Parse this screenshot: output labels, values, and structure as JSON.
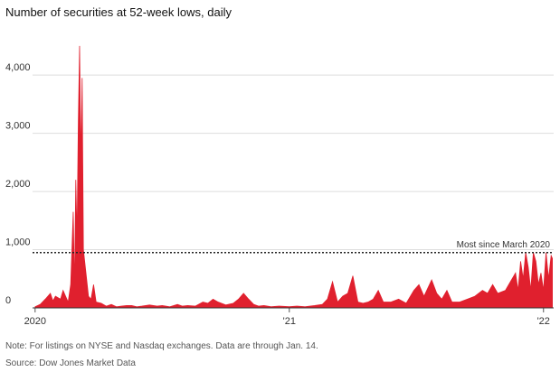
{
  "chart_data": {
    "type": "area",
    "title": "Number of securities at 52-week lows, daily",
    "note": "Note: For listings on NYSE and Nasdaq exchanges. Data are through Jan. 14.",
    "source": "Source: Dow Jones Market Data",
    "color": "#e0202e",
    "x": [
      2020.0,
      2020.02,
      2020.04,
      2020.06,
      2020.07,
      2020.08,
      2020.1,
      2020.11,
      2020.12,
      2020.13,
      2020.14,
      2020.15,
      2020.155,
      2020.16,
      2020.165,
      2020.17,
      2020.175,
      2020.18,
      2020.185,
      2020.19,
      2020.2,
      2020.21,
      2020.22,
      2020.23,
      2020.24,
      2020.26,
      2020.28,
      2020.3,
      2020.32,
      2020.34,
      2020.36,
      2020.38,
      2020.4,
      2020.42,
      2020.45,
      2020.48,
      2020.5,
      2020.53,
      2020.56,
      2020.58,
      2020.6,
      2020.63,
      2020.66,
      2020.68,
      2020.7,
      2020.72,
      2020.75,
      2020.78,
      2020.8,
      2020.82,
      2020.84,
      2020.86,
      2020.88,
      2020.9,
      2020.93,
      2020.96,
      2021.0,
      2021.03,
      2021.06,
      2021.1,
      2021.13,
      2021.15,
      2021.17,
      2021.19,
      2021.21,
      2021.23,
      2021.25,
      2021.27,
      2021.29,
      2021.31,
      2021.33,
      2021.35,
      2021.37,
      2021.4,
      2021.43,
      2021.46,
      2021.49,
      2021.51,
      2021.53,
      2021.56,
      2021.58,
      2021.6,
      2021.62,
      2021.64,
      2021.67,
      2021.7,
      2021.73,
      2021.76,
      2021.78,
      2021.8,
      2021.82,
      2021.85,
      2021.87,
      2021.89,
      2021.9,
      2021.91,
      2021.92,
      2021.93,
      2021.94,
      2021.95,
      2021.96,
      2021.97,
      2021.98,
      2021.99,
      2022.0,
      2022.01,
      2022.02,
      2022.03,
      2022.035
    ],
    "values": [
      20,
      60,
      150,
      250,
      120,
      200,
      150,
      300,
      200,
      100,
      400,
      1650,
      300,
      2200,
      1200,
      3200,
      4500,
      2500,
      3950,
      1000,
      600,
      200,
      150,
      400,
      100,
      80,
      30,
      60,
      20,
      30,
      40,
      40,
      20,
      30,
      50,
      30,
      40,
      20,
      60,
      30,
      40,
      30,
      100,
      80,
      150,
      100,
      50,
      80,
      150,
      250,
      150,
      60,
      30,
      40,
      20,
      30,
      20,
      30,
      20,
      40,
      60,
      150,
      450,
      100,
      200,
      250,
      550,
      100,
      80,
      100,
      150,
      300,
      100,
      100,
      150,
      80,
      300,
      400,
      200,
      480,
      250,
      150,
      300,
      100,
      100,
      150,
      200,
      300,
      250,
      400,
      250,
      300,
      450,
      600,
      300,
      800,
      500,
      950,
      700,
      300,
      950,
      800,
      400,
      600,
      300,
      950,
      500,
      900,
      850
    ],
    "xlim": [
      2019.99,
      2022.04
    ],
    "xticks": [
      {
        "value": 2020,
        "label": "2020"
      },
      {
        "value": 2021,
        "label": "'21"
      },
      {
        "value": 2022,
        "label": "'22"
      }
    ],
    "ylim": [
      0,
      4700
    ],
    "yticks": [
      0,
      {
        "value": 1000,
        "label": "1,000"
      },
      {
        "value": 2000,
        "label": "2,000"
      },
      {
        "value": 3000,
        "label": "3,000"
      },
      {
        "value": 4000,
        "label": "4,000"
      }
    ],
    "grid": true,
    "reference": {
      "value": 950,
      "label": "Most since March 2020"
    }
  }
}
